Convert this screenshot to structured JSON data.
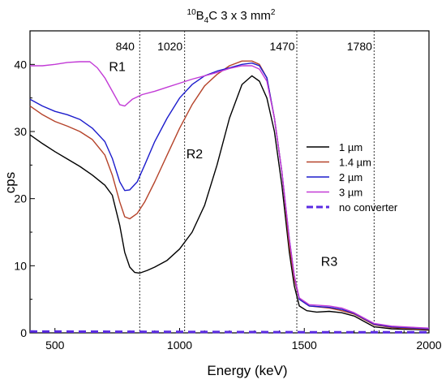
{
  "chart_data": {
    "type": "line",
    "title_parts": {
      "sup_iso": "10",
      "pre": "B",
      "sub4": "4",
      "post": "C 3 x 3 mm",
      "sup2": "2"
    },
    "xlabel": "Energy (keV)",
    "ylabel": "cps",
    "xlim": [
      400,
      2000
    ],
    "ylim": [
      0,
      45
    ],
    "xticks": [
      500,
      1000,
      1500,
      2000
    ],
    "yticks": [
      0,
      10,
      20,
      30,
      40
    ],
    "grid": false,
    "legend_position": "center-right",
    "markers": [
      {
        "x": 840,
        "label": "840"
      },
      {
        "x": 1020,
        "label": "1020"
      },
      {
        "x": 1470,
        "label": "1470"
      },
      {
        "x": 1780,
        "label": "1780"
      }
    ],
    "regions": [
      {
        "label": "R1",
        "x": 750,
        "y": 39
      },
      {
        "label": "R2",
        "x": 1060,
        "y": 26
      },
      {
        "label": "R3",
        "x": 1600,
        "y": 10
      }
    ],
    "series": [
      {
        "name": "1 µm",
        "color": "#000000",
        "dash": false,
        "points": [
          [
            400,
            29.5
          ],
          [
            450,
            28.2
          ],
          [
            500,
            27
          ],
          [
            550,
            25.9
          ],
          [
            600,
            24.8
          ],
          [
            650,
            23.5
          ],
          [
            700,
            22
          ],
          [
            730,
            20.5
          ],
          [
            760,
            16
          ],
          [
            780,
            12
          ],
          [
            800,
            9.8
          ],
          [
            820,
            9
          ],
          [
            840,
            8.9
          ],
          [
            870,
            9.3
          ],
          [
            900,
            9.8
          ],
          [
            950,
            10.8
          ],
          [
            1000,
            12.5
          ],
          [
            1050,
            15
          ],
          [
            1100,
            19
          ],
          [
            1150,
            25
          ],
          [
            1200,
            32
          ],
          [
            1250,
            37
          ],
          [
            1290,
            38.3
          ],
          [
            1320,
            37.5
          ],
          [
            1350,
            35
          ],
          [
            1380,
            30
          ],
          [
            1410,
            22
          ],
          [
            1440,
            12
          ],
          [
            1460,
            7
          ],
          [
            1480,
            4
          ],
          [
            1510,
            3.3
          ],
          [
            1550,
            3.1
          ],
          [
            1600,
            3.2
          ],
          [
            1650,
            3
          ],
          [
            1700,
            2.5
          ],
          [
            1750,
            1.5
          ],
          [
            1780,
            0.9
          ],
          [
            1850,
            0.6
          ],
          [
            1950,
            0.5
          ],
          [
            2000,
            0.4
          ]
        ]
      },
      {
        "name": "1.4 µm",
        "color": "#b5432a",
        "dash": false,
        "points": [
          [
            400,
            33.8
          ],
          [
            450,
            32.5
          ],
          [
            500,
            31.5
          ],
          [
            550,
            30.8
          ],
          [
            600,
            30
          ],
          [
            650,
            28.8
          ],
          [
            700,
            26.5
          ],
          [
            730,
            23.5
          ],
          [
            760,
            19.5
          ],
          [
            780,
            17.3
          ],
          [
            800,
            17
          ],
          [
            830,
            17.8
          ],
          [
            860,
            19.5
          ],
          [
            900,
            22.5
          ],
          [
            950,
            26.5
          ],
          [
            1000,
            30.5
          ],
          [
            1050,
            34
          ],
          [
            1100,
            36.8
          ],
          [
            1150,
            38.5
          ],
          [
            1200,
            39.8
          ],
          [
            1250,
            40.5
          ],
          [
            1290,
            40.5
          ],
          [
            1320,
            40
          ],
          [
            1350,
            38
          ],
          [
            1380,
            32
          ],
          [
            1410,
            24
          ],
          [
            1440,
            13
          ],
          [
            1460,
            8
          ],
          [
            1480,
            5
          ],
          [
            1520,
            4
          ],
          [
            1600,
            3.7
          ],
          [
            1650,
            3.3
          ],
          [
            1700,
            2.8
          ],
          [
            1750,
            1.8
          ],
          [
            1780,
            1.2
          ],
          [
            1850,
            0.8
          ],
          [
            1950,
            0.6
          ],
          [
            2000,
            0.5
          ]
        ]
      },
      {
        "name": "2 µm",
        "color": "#1c1ccc",
        "dash": false,
        "points": [
          [
            400,
            34.8
          ],
          [
            450,
            33.8
          ],
          [
            500,
            33
          ],
          [
            550,
            32.5
          ],
          [
            600,
            31.8
          ],
          [
            650,
            30.5
          ],
          [
            700,
            28.5
          ],
          [
            730,
            26
          ],
          [
            760,
            22.5
          ],
          [
            780,
            21.2
          ],
          [
            800,
            21.3
          ],
          [
            830,
            22.5
          ],
          [
            860,
            25
          ],
          [
            900,
            28.5
          ],
          [
            950,
            32
          ],
          [
            1000,
            35
          ],
          [
            1050,
            37
          ],
          [
            1100,
            38.3
          ],
          [
            1150,
            39
          ],
          [
            1200,
            39.5
          ],
          [
            1250,
            40
          ],
          [
            1290,
            40.2
          ],
          [
            1320,
            39.8
          ],
          [
            1350,
            38
          ],
          [
            1380,
            32
          ],
          [
            1410,
            24
          ],
          [
            1440,
            14
          ],
          [
            1460,
            8.5
          ],
          [
            1480,
            5
          ],
          [
            1520,
            4
          ],
          [
            1600,
            3.8
          ],
          [
            1650,
            3.5
          ],
          [
            1700,
            2.9
          ],
          [
            1750,
            1.9
          ],
          [
            1780,
            1.3
          ],
          [
            1850,
            0.9
          ],
          [
            1950,
            0.7
          ],
          [
            2000,
            0.6
          ]
        ]
      },
      {
        "name": "3 µm",
        "color": "#c23ad6",
        "dash": false,
        "points": [
          [
            400,
            39.8
          ],
          [
            450,
            39.8
          ],
          [
            500,
            40
          ],
          [
            550,
            40.3
          ],
          [
            600,
            40.4
          ],
          [
            640,
            40.4
          ],
          [
            670,
            39.5
          ],
          [
            700,
            38
          ],
          [
            730,
            36
          ],
          [
            760,
            34
          ],
          [
            780,
            33.8
          ],
          [
            810,
            34.8
          ],
          [
            850,
            35.5
          ],
          [
            900,
            36
          ],
          [
            950,
            36.6
          ],
          [
            1000,
            37.2
          ],
          [
            1050,
            37.8
          ],
          [
            1100,
            38.3
          ],
          [
            1150,
            38.8
          ],
          [
            1200,
            39.4
          ],
          [
            1250,
            39.8
          ],
          [
            1290,
            39.8
          ],
          [
            1320,
            39.3
          ],
          [
            1350,
            37.5
          ],
          [
            1380,
            32
          ],
          [
            1410,
            24
          ],
          [
            1440,
            14
          ],
          [
            1460,
            8.5
          ],
          [
            1480,
            5.2
          ],
          [
            1520,
            4.2
          ],
          [
            1600,
            4
          ],
          [
            1650,
            3.7
          ],
          [
            1700,
            3
          ],
          [
            1750,
            2
          ],
          [
            1780,
            1.4
          ],
          [
            1850,
            1
          ],
          [
            1950,
            0.8
          ],
          [
            2000,
            0.7
          ]
        ]
      },
      {
        "name": "no converter",
        "color": "#5a2be2",
        "dash": true,
        "points": [
          [
            400,
            0.2
          ],
          [
            1000,
            0.15
          ],
          [
            1500,
            0.1
          ],
          [
            2000,
            0.1
          ]
        ]
      }
    ]
  }
}
